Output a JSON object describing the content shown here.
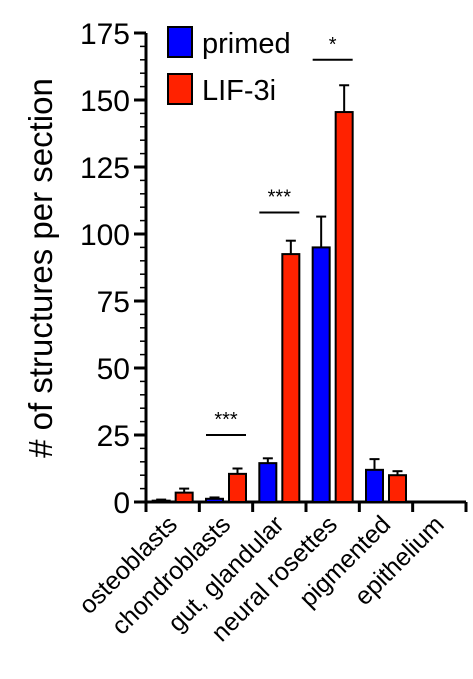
{
  "chart_data": {
    "type": "bar",
    "title": "",
    "xlabel": "",
    "ylabel": "# of structures per section",
    "ylim": [
      0,
      175
    ],
    "yticks": [
      0,
      25,
      50,
      75,
      100,
      125,
      150,
      175
    ],
    "grid": false,
    "legend_position": "top-left",
    "categories": [
      "osteoblasts",
      "chondroblasts",
      "gut, glandular",
      "neural rosettes",
      "pigmented",
      "epithelium"
    ],
    "series": [
      {
        "name": "primed",
        "color": "#0000ff",
        "values": [
          0.5,
          1.2,
          14.5,
          95,
          12,
          null
        ],
        "errors": [
          0.4,
          0.5,
          1.8,
          11.5,
          4,
          null
        ]
      },
      {
        "name": "LIF-3i",
        "color": "#ff2200",
        "values": [
          3.5,
          10.5,
          92.5,
          145.5,
          10,
          null
        ],
        "errors": [
          1.5,
          2,
          5,
          10,
          1.5,
          null
        ]
      }
    ],
    "significance": [
      {
        "category_index": 1,
        "label": "***",
        "y": 25
      },
      {
        "category_index": 2,
        "label": "***",
        "y": 108
      },
      {
        "category_index": 3,
        "label": "*",
        "y": 165
      }
    ]
  }
}
